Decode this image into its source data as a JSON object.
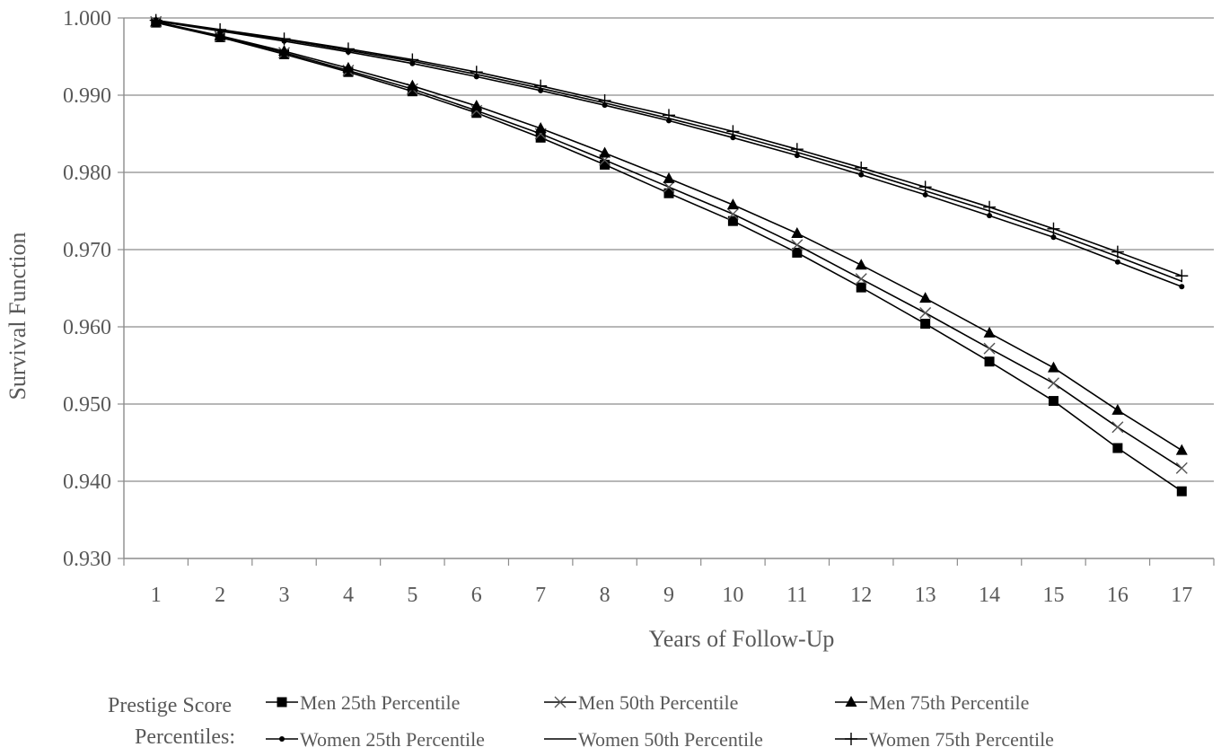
{
  "chart_data": {
    "type": "line",
    "xlabel": "Years of Follow-Up",
    "ylabel": "Survival Function",
    "x": [
      1,
      2,
      3,
      4,
      5,
      6,
      7,
      8,
      9,
      10,
      11,
      12,
      13,
      14,
      15,
      16,
      17
    ],
    "ylim": [
      0.93,
      1.0
    ],
    "yticks": [
      "0.930",
      "0.940",
      "0.950",
      "0.960",
      "0.970",
      "0.980",
      "0.990",
      "1.000"
    ],
    "grid": true,
    "legend_position": "bottom",
    "legend_title_line1": "Prestige Score",
    "legend_title_line2": "Percentiles:",
    "series": [
      {
        "name": "Men 25th Percentile",
        "marker": "square",
        "values": [
          0.9994,
          0.9975,
          0.9953,
          0.993,
          0.9905,
          0.9877,
          0.9845,
          0.981,
          0.9773,
          0.9737,
          0.9696,
          0.9651,
          0.9604,
          0.9555,
          0.9504,
          0.9443,
          0.9387
        ]
      },
      {
        "name": "Men 50th Percentile",
        "marker": "x",
        "values": [
          0.9995,
          0.9976,
          0.9955,
          0.9932,
          0.9908,
          0.988,
          0.985,
          0.9816,
          0.9781,
          0.9746,
          0.9706,
          0.9662,
          0.9618,
          0.9572,
          0.9527,
          0.947,
          0.9417
        ]
      },
      {
        "name": "Men 75th Percentile",
        "marker": "triangle",
        "values": [
          0.9995,
          0.9977,
          0.9957,
          0.9935,
          0.9912,
          0.9886,
          0.9857,
          0.9825,
          0.9792,
          0.9758,
          0.9721,
          0.968,
          0.9637,
          0.9592,
          0.9547,
          0.9492,
          0.944
        ]
      },
      {
        "name": "Women 25th Percentile",
        "marker": "dot",
        "values": [
          0.9996,
          0.9983,
          0.997,
          0.9956,
          0.9941,
          0.9924,
          0.9906,
          0.9887,
          0.9867,
          0.9845,
          0.9822,
          0.9797,
          0.9771,
          0.9744,
          0.9716,
          0.9684,
          0.9652
        ]
      },
      {
        "name": "Women 50th Percentile",
        "marker": "none",
        "values": [
          0.9996,
          0.9984,
          0.9972,
          0.9958,
          0.9944,
          0.9927,
          0.9909,
          0.989,
          0.987,
          0.9849,
          0.9826,
          0.9802,
          0.9776,
          0.975,
          0.9722,
          0.9691,
          0.9659
        ]
      },
      {
        "name": "Women 75th Percentile",
        "marker": "plus",
        "values": [
          0.9997,
          0.9985,
          0.9973,
          0.996,
          0.9946,
          0.993,
          0.9912,
          0.9893,
          0.9874,
          0.9853,
          0.983,
          0.9806,
          0.9781,
          0.9755,
          0.9727,
          0.9697,
          0.9666
        ]
      }
    ]
  }
}
